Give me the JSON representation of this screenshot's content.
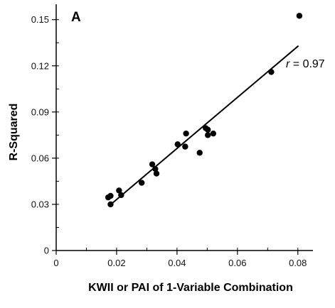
{
  "chart_data": {
    "type": "scatter",
    "panel_label": "A",
    "xlabel": "KWII or PAI of 1-Variable Combination",
    "ylabel": "R-Squared",
    "xlim": [
      0,
      0.085
    ],
    "ylim": [
      0,
      0.16
    ],
    "x_ticks": [
      "0",
      "0.02",
      "0.04",
      "0.06",
      "0.08"
    ],
    "y_ticks": [
      "0",
      "0.03",
      "0.06",
      "0.09",
      "0.12",
      "0.15"
    ],
    "x_tick_values": [
      0,
      0.02,
      0.04,
      0.06,
      0.08
    ],
    "y_tick_values": [
      0,
      0.03,
      0.06,
      0.09,
      0.12,
      0.15
    ],
    "minor_x_step": 0.01,
    "minor_y_step": 0.015,
    "points": [
      {
        "x": 0.0172,
        "y": 0.0345
      },
      {
        "x": 0.018,
        "y": 0.0355
      },
      {
        "x": 0.018,
        "y": 0.03
      },
      {
        "x": 0.0208,
        "y": 0.039
      },
      {
        "x": 0.0215,
        "y": 0.036
      },
      {
        "x": 0.0283,
        "y": 0.044
      },
      {
        "x": 0.0318,
        "y": 0.056
      },
      {
        "x": 0.0328,
        "y": 0.053
      },
      {
        "x": 0.0332,
        "y": 0.05
      },
      {
        "x": 0.0402,
        "y": 0.069
      },
      {
        "x": 0.0427,
        "y": 0.0675
      },
      {
        "x": 0.043,
        "y": 0.076
      },
      {
        "x": 0.0475,
        "y": 0.0635
      },
      {
        "x": 0.0495,
        "y": 0.0795
      },
      {
        "x": 0.0502,
        "y": 0.0785
      },
      {
        "x": 0.0502,
        "y": 0.075
      },
      {
        "x": 0.052,
        "y": 0.076
      },
      {
        "x": 0.0712,
        "y": 0.116
      },
      {
        "x": 0.0805,
        "y": 0.1525
      }
    ],
    "fit_line": {
      "x": [
        0.0175,
        0.0802
      ],
      "y": [
        0.029,
        0.133
      ]
    },
    "annotation": {
      "r_symbol": "r",
      "r_text": " = 0.97"
    },
    "grid": false
  }
}
